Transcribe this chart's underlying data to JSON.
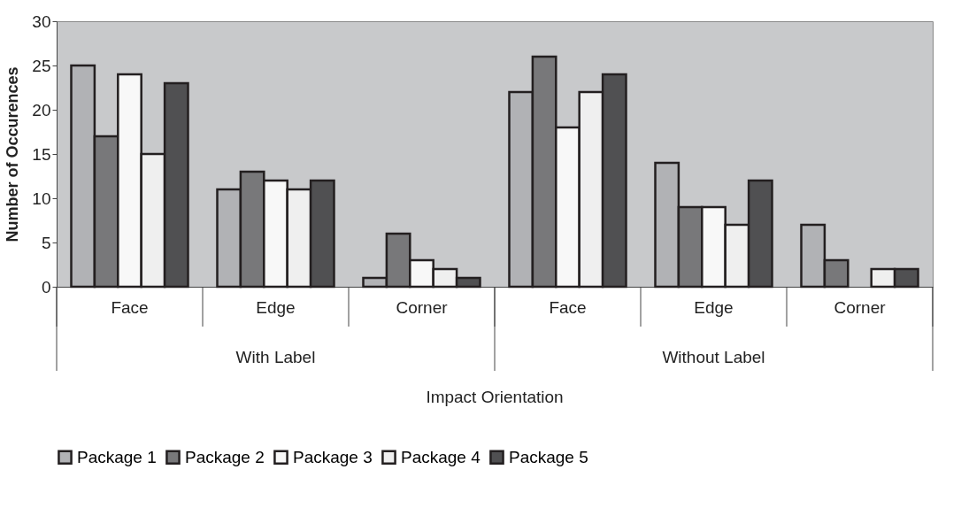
{
  "chart_data": {
    "type": "bar",
    "xlabel": "Impact Orientation",
    "ylabel": "Number of Occurences",
    "categories": [
      "Face",
      "Edge",
      "Corner",
      "Face",
      "Edge",
      "Corner"
    ],
    "annotations": [
      "With Label",
      "Without Label"
    ],
    "series": [
      {
        "name": "Package 1",
        "color": "#b1b2b5",
        "values": [
          25,
          11,
          1,
          22,
          14,
          7
        ]
      },
      {
        "name": "Package 2",
        "color": "#78787a",
        "values": [
          17,
          13,
          6,
          26,
          9,
          3
        ]
      },
      {
        "name": "Package 3",
        "color": "#f8f8f8",
        "values": [
          24,
          12,
          3,
          18,
          9,
          0
        ]
      },
      {
        "name": "Package 4",
        "color": "#efefef",
        "values": [
          15,
          11,
          2,
          22,
          7,
          2
        ]
      },
      {
        "name": "Package 5",
        "color": "#505052",
        "values": [
          23,
          12,
          1,
          24,
          12,
          2
        ]
      }
    ],
    "ylim": [
      0,
      30
    ],
    "yticks": [
      0,
      5,
      10,
      15,
      20,
      25,
      30
    ],
    "grid": false,
    "legend": "bottom"
  }
}
